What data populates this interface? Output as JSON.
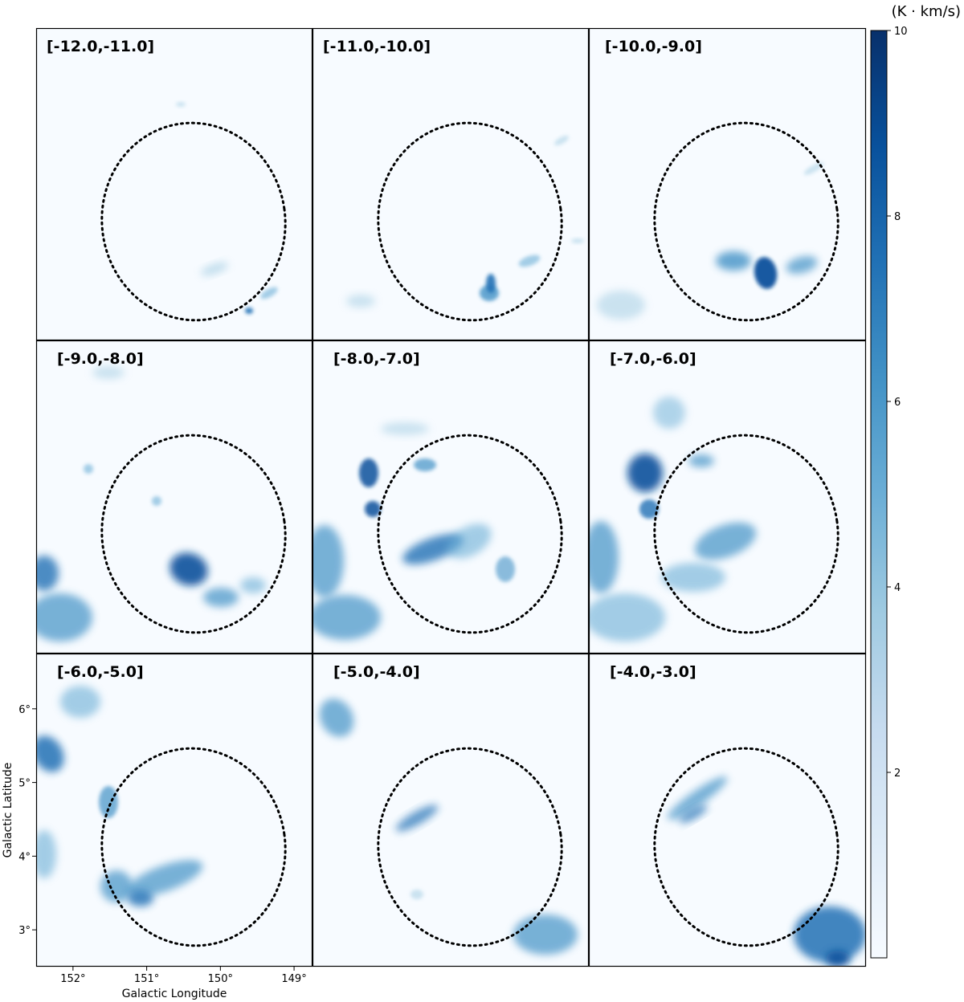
{
  "chart_data": {
    "type": "heatmap",
    "colormap": "Blues",
    "colorbar": {
      "unit": "(K · km/s)",
      "range": [
        0,
        10
      ],
      "ticks": [
        2,
        4,
        6,
        8,
        10
      ]
    },
    "x_axis": {
      "label": "Galactic Longitude",
      "ticks": [
        152,
        151,
        150,
        149
      ],
      "tick_labels": [
        "152°",
        "151°",
        "150°",
        "149°"
      ],
      "range": [
        152.5,
        148.75
      ]
    },
    "y_axis": {
      "label": "Galactic Latitude",
      "ticks": [
        3,
        4,
        5,
        6
      ],
      "tick_labels": [
        "3°",
        "4°",
        "5°",
        "6°"
      ],
      "range": [
        2.5,
        6.75
      ]
    },
    "shell_ellipse": {
      "center_l": 150.6,
      "center_b": 4.45,
      "style": "dotted"
    },
    "panels": [
      {
        "label": "[-12.0,-11.0]",
        "velocity_range": [
          -12.0,
          -11.0
        ],
        "intensity": "faint"
      },
      {
        "label": "[-11.0,-10.0]",
        "velocity_range": [
          -11.0,
          -10.0
        ],
        "intensity": "faint"
      },
      {
        "label": "[-10.0,-9.0]",
        "velocity_range": [
          -10.0,
          -9.0
        ],
        "intensity": "moderate"
      },
      {
        "label": "[-9.0,-8.0]",
        "velocity_range": [
          -9.0,
          -8.0
        ],
        "intensity": "moderate"
      },
      {
        "label": "[-8.0,-7.0]",
        "velocity_range": [
          -8.0,
          -7.0
        ],
        "intensity": "strong"
      },
      {
        "label": "[-7.0,-6.0]",
        "velocity_range": [
          -7.0,
          -6.0
        ],
        "intensity": "strong"
      },
      {
        "label": "[-6.0,-5.0]",
        "velocity_range": [
          -6.0,
          -5.0
        ],
        "intensity": "moderate"
      },
      {
        "label": "[-5.0,-4.0]",
        "velocity_range": [
          -5.0,
          -4.0
        ],
        "intensity": "faint"
      },
      {
        "label": "[-4.0,-3.0]",
        "velocity_range": [
          -4.0,
          -3.0
        ],
        "intensity": "faint"
      }
    ]
  }
}
